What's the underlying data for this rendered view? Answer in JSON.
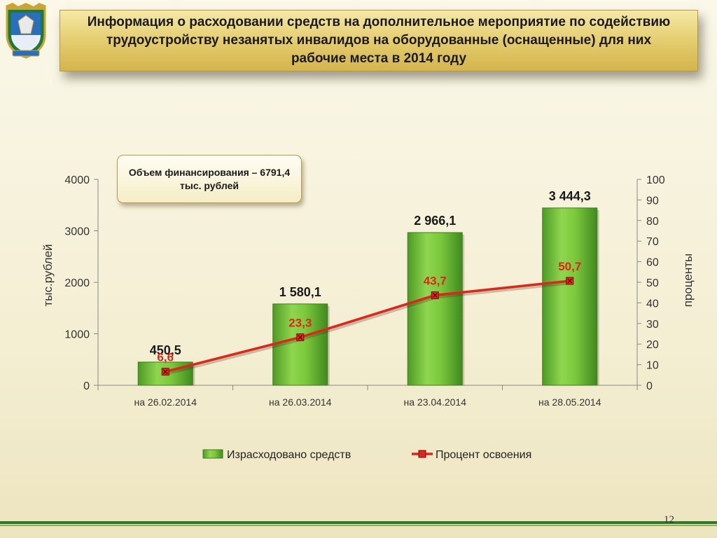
{
  "title": "Информация о расходовании средств  на дополнительное мероприятие по содействию трудоустройству  незанятых инвалидов  на оборудованные (оснащенные) для них рабочие места в 2014 году",
  "callout": "Объем финансирования – 6791,4 тыс. рублей",
  "page_number": "12",
  "chart_data": {
    "type": "bar",
    "categories": [
      "на 26.02.2014",
      "на 26.03.2014",
      "на 23.04.2014",
      "на 28.05.2014"
    ],
    "series": [
      {
        "name": "Израсходовано  средств",
        "type": "bar",
        "axis": "left",
        "values": [
          450.5,
          1580.1,
          2966.1,
          3444.3
        ],
        "labels": [
          "450,5",
          "1 580,1",
          "2 966,1",
          "3 444,3"
        ],
        "color": "#6fbf3a"
      },
      {
        "name": "Процент освоения",
        "type": "line",
        "axis": "right",
        "values": [
          6.6,
          23.3,
          43.7,
          50.7
        ],
        "labels": [
          "6,6",
          "23,3",
          "43,7",
          "50,7"
        ],
        "color": "#e0261c"
      }
    ],
    "ylabel": "тыс.рублей",
    "y2label": "проценты",
    "ylim": [
      0,
      4000
    ],
    "y2lim": [
      0,
      100
    ],
    "yticks": [
      0,
      1000,
      2000,
      3000,
      4000
    ],
    "y2ticks": [
      0,
      10,
      20,
      30,
      40,
      50,
      60,
      70,
      80,
      90,
      100
    ],
    "grid": false,
    "legend": "bottom"
  }
}
